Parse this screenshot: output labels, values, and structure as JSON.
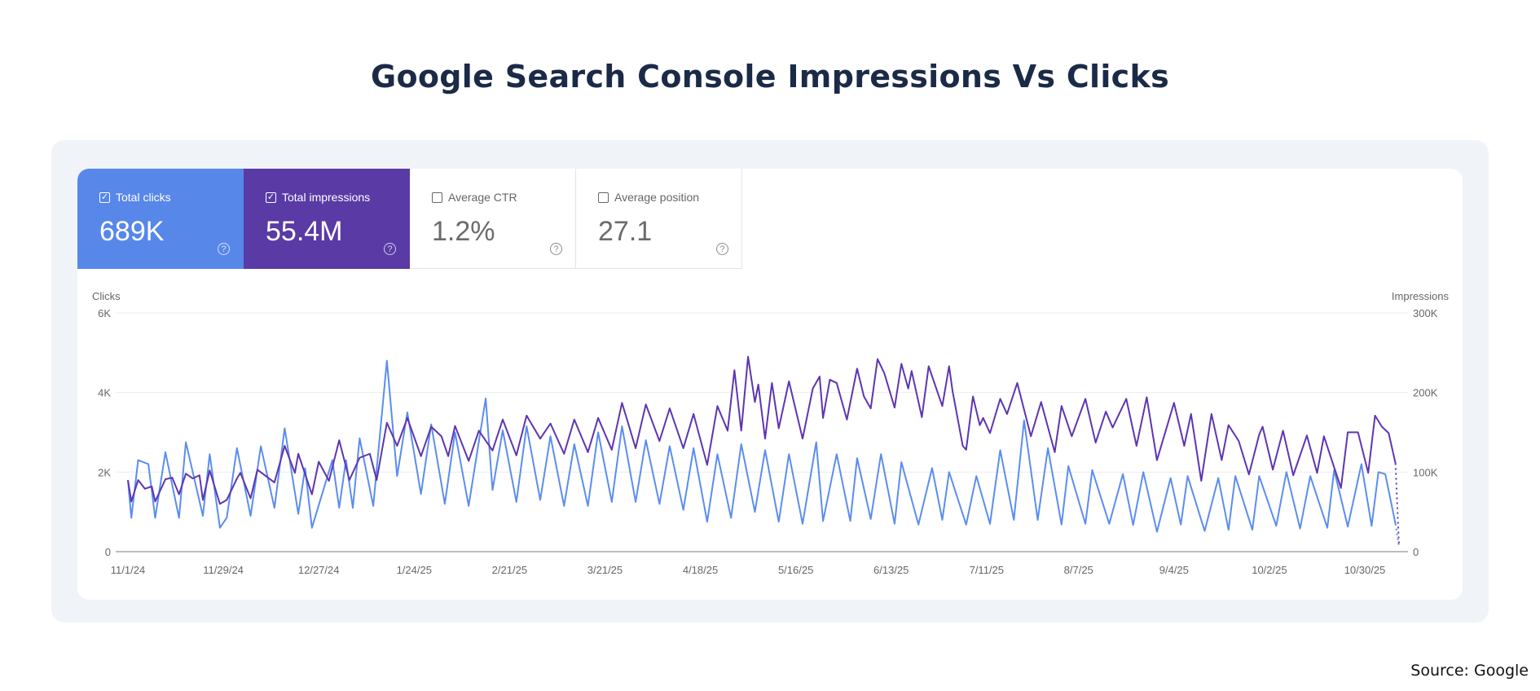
{
  "title": "Google Search Console Impressions Vs Clicks",
  "source": "Source: Google",
  "metrics": [
    {
      "label": "Total clicks",
      "value": "689K",
      "checked": true,
      "color": "#5787e9"
    },
    {
      "label": "Total impressions",
      "value": "55.4M",
      "checked": true,
      "color": "#5a3aa5"
    },
    {
      "label": "Average CTR",
      "value": "1.2%",
      "checked": false
    },
    {
      "label": "Average position",
      "value": "27.1",
      "checked": false
    }
  ],
  "icons": {
    "checkbox_checked": "✓",
    "help": "?"
  },
  "chart_data": {
    "type": "line",
    "ylabel_left": "Clicks",
    "ylabel_right": "Impressions",
    "ylim_left": [
      0,
      6000
    ],
    "ylim_right": [
      0,
      300000
    ],
    "yticks_left": [
      "0",
      "2K",
      "4K",
      "6K"
    ],
    "yticks_right": [
      "0",
      "100K",
      "200K",
      "300K"
    ],
    "xticks": [
      "11/1/24",
      "11/29/24",
      "12/27/24",
      "1/24/25",
      "2/21/25",
      "3/21/25",
      "4/18/25",
      "5/16/25",
      "6/13/25",
      "7/11/25",
      "8/7/25",
      "9/4/25",
      "10/2/25",
      "10/30/25"
    ],
    "grid": true,
    "last_segment_dashed": true,
    "series": [
      {
        "name": "Clicks",
        "axis": "left",
        "color": "#5b8def",
        "points": [
          [
            "11/1/24",
            1800
          ],
          [
            "11/2/24",
            850
          ],
          [
            "11/4/24",
            2300
          ],
          [
            "11/7/24",
            2200
          ],
          [
            "11/9/24",
            850
          ],
          [
            "11/12/24",
            2500
          ],
          [
            "11/16/24",
            850
          ],
          [
            "11/18/24",
            2750
          ],
          [
            "11/23/24",
            900
          ],
          [
            "11/25/24",
            2450
          ],
          [
            "11/28/24",
            600
          ],
          [
            "11/30/24",
            850
          ],
          [
            "12/3/24",
            2600
          ],
          [
            "12/7/24",
            900
          ],
          [
            "12/10/24",
            2650
          ],
          [
            "12/14/24",
            1100
          ],
          [
            "12/17/24",
            3100
          ],
          [
            "12/21/24",
            950
          ],
          [
            "12/23/24",
            2100
          ],
          [
            "12/25/24",
            600
          ],
          [
            "12/31/24",
            2300
          ],
          [
            "1/2/25",
            1100
          ],
          [
            "1/4/25",
            2300
          ],
          [
            "1/6/25",
            1100
          ],
          [
            "1/8/25",
            2850
          ],
          [
            "1/12/25",
            1150
          ],
          [
            "1/16/25",
            4800
          ],
          [
            "1/19/25",
            1900
          ],
          [
            "1/22/25",
            3500
          ],
          [
            "1/26/25",
            1450
          ],
          [
            "1/29/25",
            3200
          ],
          [
            "2/2/25",
            1200
          ],
          [
            "2/5/25",
            3000
          ],
          [
            "2/9/25",
            1150
          ],
          [
            "2/14/25",
            3850
          ],
          [
            "2/16/25",
            1550
          ],
          [
            "2/19/25",
            3050
          ],
          [
            "2/23/25",
            1250
          ],
          [
            "2/26/25",
            3150
          ],
          [
            "3/2/25",
            1300
          ],
          [
            "3/5/25",
            2900
          ],
          [
            "3/9/25",
            1150
          ],
          [
            "3/12/25",
            2700
          ],
          [
            "3/16/25",
            1150
          ],
          [
            "3/19/25",
            3000
          ],
          [
            "3/23/25",
            1250
          ],
          [
            "3/26/25",
            3150
          ],
          [
            "3/30/25",
            1250
          ],
          [
            "4/2/25",
            2800
          ],
          [
            "4/6/25",
            1200
          ],
          [
            "4/9/25",
            2650
          ],
          [
            "4/13/25",
            1050
          ],
          [
            "4/16/25",
            2600
          ],
          [
            "4/20/25",
            750
          ],
          [
            "4/23/25",
            2450
          ],
          [
            "4/27/25",
            850
          ],
          [
            "4/30/25",
            2700
          ],
          [
            "5/4/25",
            1000
          ],
          [
            "5/7/25",
            2550
          ],
          [
            "5/11/25",
            750
          ],
          [
            "5/14/25",
            2450
          ],
          [
            "5/18/25",
            700
          ],
          [
            "5/22/25",
            2750
          ],
          [
            "5/24/25",
            770
          ],
          [
            "5/28/25",
            2450
          ],
          [
            "6/1/25",
            770
          ],
          [
            "6/3/25",
            2350
          ],
          [
            "6/7/25",
            820
          ],
          [
            "6/10/25",
            2450
          ],
          [
            "6/14/25",
            700
          ],
          [
            "6/16/25",
            2250
          ],
          [
            "6/21/25",
            680
          ],
          [
            "6/25/25",
            2100
          ],
          [
            "6/28/25",
            800
          ],
          [
            "6/30/25",
            2000
          ],
          [
            "7/5/25",
            680
          ],
          [
            "7/8/25",
            1900
          ],
          [
            "7/12/25",
            700
          ],
          [
            "7/15/25",
            2550
          ],
          [
            "7/19/25",
            800
          ],
          [
            "7/22/25",
            3300
          ],
          [
            "7/26/25",
            800
          ],
          [
            "7/29/25",
            2600
          ],
          [
            "8/2/25",
            680
          ],
          [
            "8/4/25",
            2150
          ],
          [
            "8/9/25",
            700
          ],
          [
            "8/11/25",
            2050
          ],
          [
            "8/16/25",
            700
          ],
          [
            "8/20/25",
            1950
          ],
          [
            "8/23/25",
            670
          ],
          [
            "8/26/25",
            2000
          ],
          [
            "8/30/25",
            500
          ],
          [
            "9/3/25",
            1850
          ],
          [
            "9/6/25",
            680
          ],
          [
            "9/8/25",
            1900
          ],
          [
            "9/13/25",
            520
          ],
          [
            "9/17/25",
            1850
          ],
          [
            "9/20/25",
            550
          ],
          [
            "9/22/25",
            1900
          ],
          [
            "9/27/25",
            550
          ],
          [
            "9/29/25",
            1900
          ],
          [
            "10/4/25",
            650
          ],
          [
            "10/7/25",
            2000
          ],
          [
            "10/11/25",
            580
          ],
          [
            "10/14/25",
            1900
          ],
          [
            "10/19/25",
            600
          ],
          [
            "10/21/25",
            2050
          ],
          [
            "10/25/25",
            630
          ],
          [
            "10/29/25",
            2200
          ],
          [
            "11/1/25",
            650
          ],
          [
            "11/3/25",
            2000
          ],
          [
            "11/5/25",
            1950
          ],
          [
            "11/8/25",
            700
          ],
          [
            "11/9/25",
            150
          ]
        ]
      },
      {
        "name": "Impressions",
        "axis": "right",
        "color": "#5e35b1",
        "points": [
          [
            "11/1/24",
            90000
          ],
          [
            "11/2/24",
            63000
          ],
          [
            "11/4/24",
            90000
          ],
          [
            "11/6/24",
            79000
          ],
          [
            "11/8/24",
            82000
          ],
          [
            "11/9/24",
            63000
          ],
          [
            "11/12/24",
            91000
          ],
          [
            "11/14/24",
            93000
          ],
          [
            "11/16/24",
            72000
          ],
          [
            "11/18/24",
            98000
          ],
          [
            "11/20/24",
            92000
          ],
          [
            "11/22/24",
            96000
          ],
          [
            "11/23/24",
            65000
          ],
          [
            "11/25/24",
            102000
          ],
          [
            "11/28/24",
            60000
          ],
          [
            "11/30/24",
            65000
          ],
          [
            "12/3/24",
            92000
          ],
          [
            "12/4/24",
            99000
          ],
          [
            "12/7/24",
            67000
          ],
          [
            "12/9/24",
            103000
          ],
          [
            "12/14/24",
            87000
          ],
          [
            "12/17/24",
            133000
          ],
          [
            "12/20/24",
            99000
          ],
          [
            "12/21/24",
            123000
          ],
          [
            "12/25/24",
            72000
          ],
          [
            "12/27/24",
            113000
          ],
          [
            "12/30/24",
            89000
          ],
          [
            "1/2/25",
            140000
          ],
          [
            "1/5/25",
            90000
          ],
          [
            "1/8/25",
            118000
          ],
          [
            "1/11/25",
            123000
          ],
          [
            "1/13/25",
            90000
          ],
          [
            "1/16/25",
            162000
          ],
          [
            "1/19/25",
            133000
          ],
          [
            "1/22/25",
            168000
          ],
          [
            "1/26/25",
            120000
          ],
          [
            "1/29/25",
            157000
          ],
          [
            "2/1/25",
            145000
          ],
          [
            "2/3/25",
            120000
          ],
          [
            "2/5/25",
            158000
          ],
          [
            "2/9/25",
            114000
          ],
          [
            "2/12/25",
            152000
          ],
          [
            "2/16/25",
            127000
          ],
          [
            "2/19/25",
            166000
          ],
          [
            "2/23/25",
            121000
          ],
          [
            "2/26/25",
            171000
          ],
          [
            "3/2/25",
            142000
          ],
          [
            "3/5/25",
            161000
          ],
          [
            "3/9/25",
            123000
          ],
          [
            "3/12/25",
            166000
          ],
          [
            "3/16/25",
            125000
          ],
          [
            "3/19/25",
            168000
          ],
          [
            "3/23/25",
            128000
          ],
          [
            "3/26/25",
            187000
          ],
          [
            "3/30/25",
            130000
          ],
          [
            "4/2/25",
            185000
          ],
          [
            "4/6/25",
            139000
          ],
          [
            "4/9/25",
            180000
          ],
          [
            "4/13/25",
            130000
          ],
          [
            "4/16/25",
            173000
          ],
          [
            "4/20/25",
            109000
          ],
          [
            "4/23/25",
            183000
          ],
          [
            "4/26/25",
            152000
          ],
          [
            "4/28/25",
            228000
          ],
          [
            "4/30/25",
            152000
          ],
          [
            "5/2/25",
            245000
          ],
          [
            "5/4/25",
            188000
          ],
          [
            "5/5/25",
            210000
          ],
          [
            "5/7/25",
            142000
          ],
          [
            "5/9/25",
            212000
          ],
          [
            "5/11/25",
            155000
          ],
          [
            "5/14/25",
            214000
          ],
          [
            "5/18/25",
            142000
          ],
          [
            "5/21/25",
            205000
          ],
          [
            "5/23/25",
            220000
          ],
          [
            "5/24/25",
            168000
          ],
          [
            "5/26/25",
            216000
          ],
          [
            "5/28/25",
            212000
          ],
          [
            "5/31/25",
            166000
          ],
          [
            "6/3/25",
            230000
          ],
          [
            "6/5/25",
            195000
          ],
          [
            "6/7/25",
            180000
          ],
          [
            "6/9/25",
            242000
          ],
          [
            "6/11/25",
            224000
          ],
          [
            "6/14/25",
            181000
          ],
          [
            "6/16/25",
            236000
          ],
          [
            "6/18/25",
            205000
          ],
          [
            "6/19/25",
            227000
          ],
          [
            "6/22/25",
            169000
          ],
          [
            "6/24/25",
            233000
          ],
          [
            "6/28/25",
            183000
          ],
          [
            "6/30/25",
            233000
          ],
          [
            "7/1/25",
            202000
          ],
          [
            "7/4/25",
            133000
          ],
          [
            "7/5/25",
            128000
          ],
          [
            "7/7/25",
            195000
          ],
          [
            "7/9/25",
            159000
          ],
          [
            "7/10/25",
            168000
          ],
          [
            "7/12/25",
            149000
          ],
          [
            "7/15/25",
            192000
          ],
          [
            "7/17/25",
            173000
          ],
          [
            "7/20/25",
            212000
          ],
          [
            "7/24/25",
            145000
          ],
          [
            "7/27/25",
            188000
          ],
          [
            "7/31/25",
            125000
          ],
          [
            "8/2/25",
            183000
          ],
          [
            "8/5/25",
            145000
          ],
          [
            "8/9/25",
            192000
          ],
          [
            "8/12/25",
            137000
          ],
          [
            "8/15/25",
            176000
          ],
          [
            "8/17/25",
            156000
          ],
          [
            "8/21/25",
            192000
          ],
          [
            "8/24/25",
            133000
          ],
          [
            "8/27/25",
            194000
          ],
          [
            "8/30/25",
            115000
          ],
          [
            "9/4/25",
            187000
          ],
          [
            "9/7/25",
            133000
          ],
          [
            "9/9/25",
            173000
          ],
          [
            "9/12/25",
            89000
          ],
          [
            "9/15/25",
            173000
          ],
          [
            "9/18/25",
            115000
          ],
          [
            "9/20/25",
            159000
          ],
          [
            "9/23/25",
            139000
          ],
          [
            "9/26/25",
            97000
          ],
          [
            "9/29/25",
            147000
          ],
          [
            "9/30/25",
            157000
          ],
          [
            "10/3/25",
            103000
          ],
          [
            "10/6/25",
            152000
          ],
          [
            "10/9/25",
            96000
          ],
          [
            "10/13/25",
            146000
          ],
          [
            "10/16/25",
            99000
          ],
          [
            "10/18/25",
            145000
          ],
          [
            "10/23/25",
            80000
          ],
          [
            "10/25/25",
            150000
          ],
          [
            "10/28/25",
            150000
          ],
          [
            "10/31/25",
            99000
          ],
          [
            "11/2/25",
            171000
          ],
          [
            "11/4/25",
            157000
          ],
          [
            "11/6/25",
            149000
          ],
          [
            "11/8/25",
            111000
          ],
          [
            "11/9/25",
            10000
          ]
        ]
      }
    ]
  }
}
